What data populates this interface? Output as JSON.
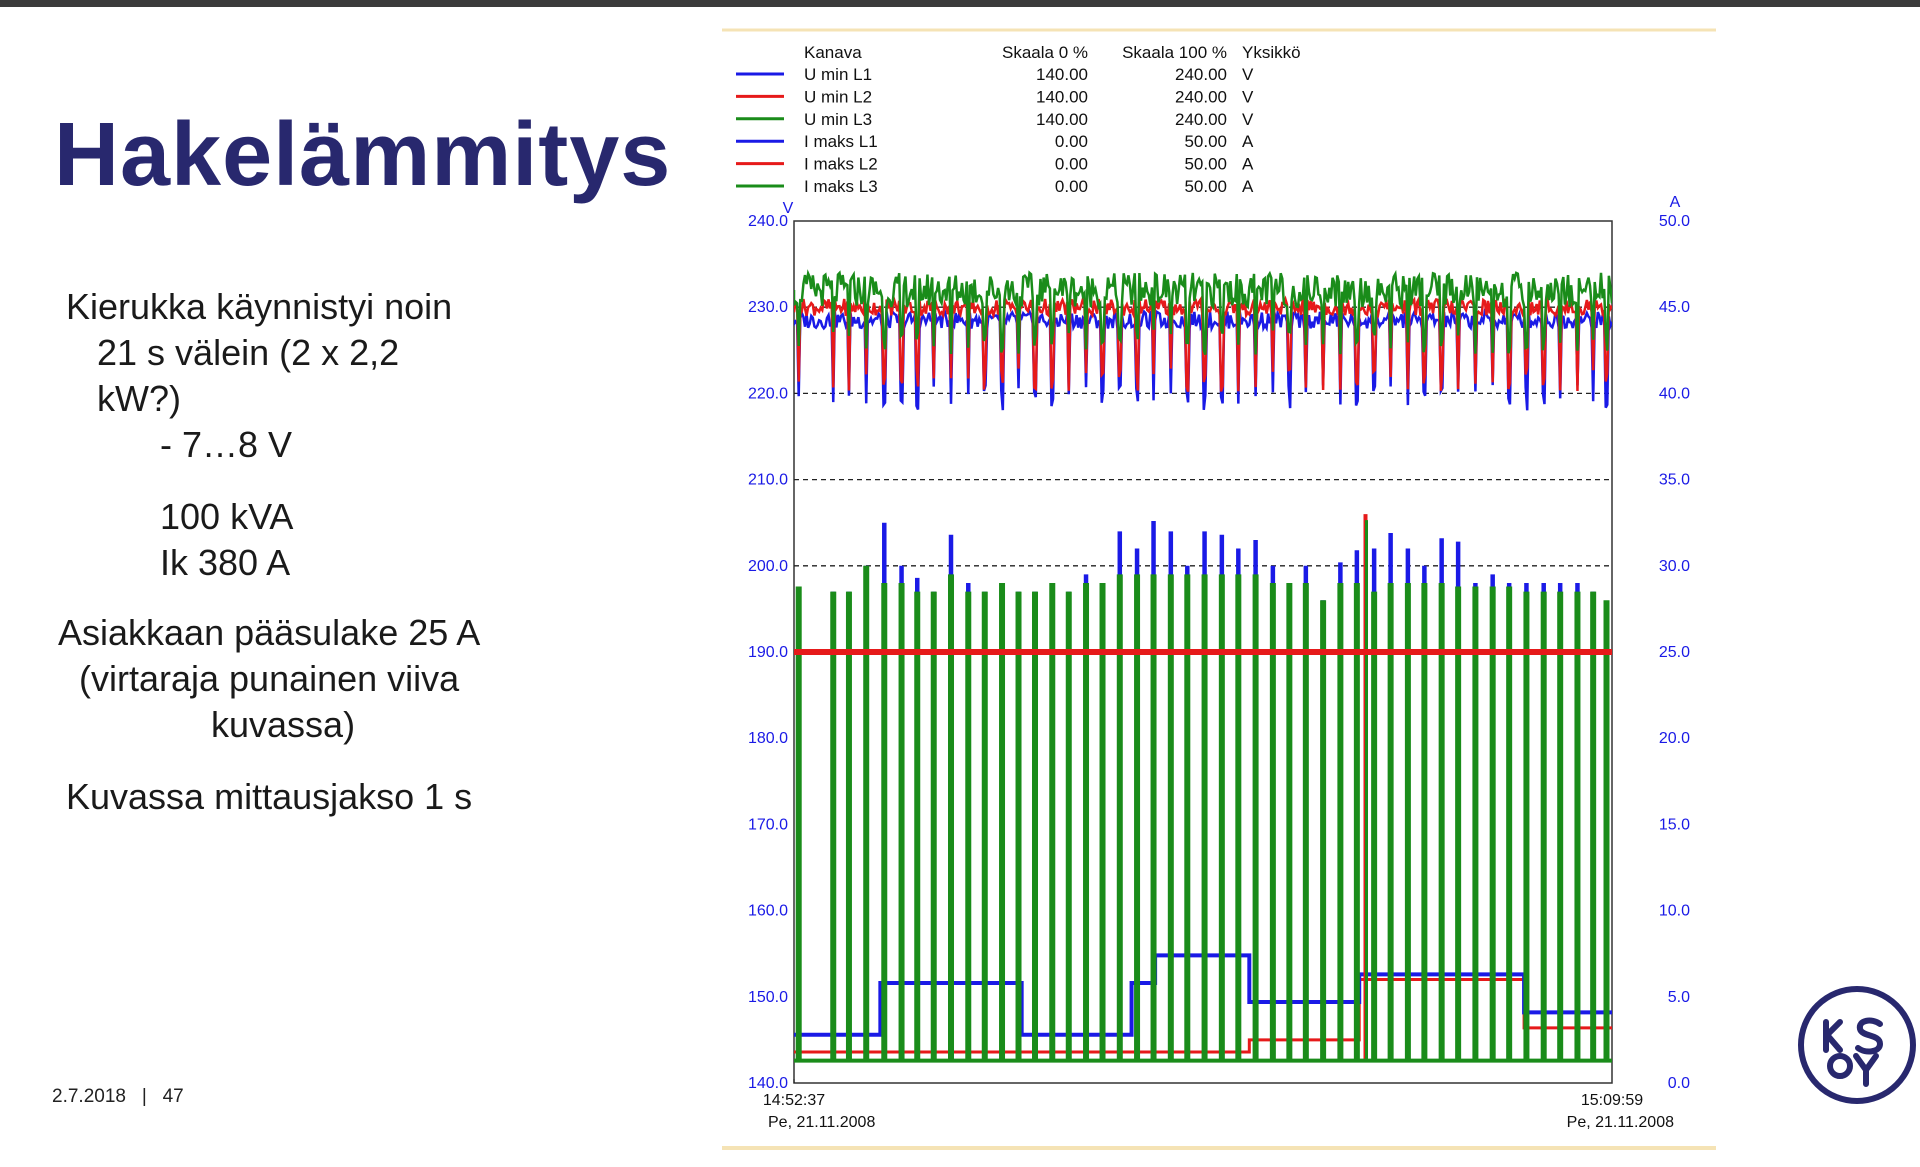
{
  "slide": {
    "title": "Hakelämmitys",
    "bullets": [
      "Kierukka käynnistyi  noin",
      "21 s välein  (2 x 2,2",
      "kW?)",
      "- 7…8 V",
      "100 kVA",
      "Ik 380 A",
      "Asiakkaan pääsulake  25 A",
      "(virtaraja  punainen viiva",
      "kuvassa)",
      "Kuvassa mittausjakso  1 s"
    ],
    "footer": {
      "date": "2.7.2018",
      "separator": "|",
      "page": "47"
    },
    "logo_text": "KSOY"
  },
  "colors": {
    "title": "#28286e",
    "l1": "#1a1ae6",
    "l2": "#e61a1a",
    "l3": "#1a8c1a",
    "axis_label": "#1a1ae6"
  },
  "chart_data": {
    "type": "line",
    "legend": {
      "headers": [
        "Kanava",
        "Skaala 0 %",
        "Skaala 100 %",
        "Yksikkö"
      ],
      "rows": [
        {
          "name": "U min L1",
          "scale0": "140.00",
          "scale100": "240.00",
          "unit": "V",
          "color": "#1a1ae6"
        },
        {
          "name": "U min L2",
          "scale0": "140.00",
          "scale100": "240.00",
          "unit": "V",
          "color": "#e61a1a"
        },
        {
          "name": "U min L3",
          "scale0": "140.00",
          "scale100": "240.00",
          "unit": "V",
          "color": "#1a8c1a"
        },
        {
          "name": "I maks L1",
          "scale0": "0.00",
          "scale100": "50.00",
          "unit": "A",
          "color": "#1a1ae6"
        },
        {
          "name": "I maks L2",
          "scale0": "0.00",
          "scale100": "50.00",
          "unit": "A",
          "color": "#e61a1a"
        },
        {
          "name": "I maks L3",
          "scale0": "0.00",
          "scale100": "50.00",
          "unit": "A",
          "color": "#1a8c1a"
        }
      ]
    },
    "y_left": {
      "unit": "V",
      "min": 140,
      "max": 240,
      "ticks": [
        "140.0",
        "150.0",
        "160.0",
        "170.0",
        "180.0",
        "190.0",
        "200.0",
        "210.0",
        "220.0",
        "230.0",
        "240.0"
      ]
    },
    "y_right": {
      "unit": "A",
      "min": 0,
      "max": 50,
      "ticks": [
        "0.0",
        "5.0",
        "10.0",
        "15.0",
        "20.0",
        "25.0",
        "30.0",
        "35.0",
        "40.0",
        "45.0",
        "50.0"
      ]
    },
    "x": {
      "start_time": "14:52:37",
      "start_date": "Pe, 21.11.2008",
      "end_time": "15:09:59",
      "end_date": "Pe, 21.11.2008",
      "start_s": 0,
      "end_s": 1042
    },
    "grid": {
      "dashed_y": [
        200,
        210,
        220,
        230
      ]
    },
    "limit_line": {
      "label": "virtaraja",
      "value_A": 25,
      "color": "#e61a1a"
    },
    "cycle_period_s": 21,
    "current_pulse_peaks_A": [
      {
        "t": 6,
        "l3": 28.8
      },
      {
        "t": 50,
        "l1": 28.5,
        "l3": 28.5
      },
      {
        "t": 70,
        "l1": 28.5,
        "l3": 28.5
      },
      {
        "t": 92,
        "l1": 30.0,
        "l3": 30.0
      },
      {
        "t": 115,
        "l1": 32.5,
        "l3": 29.0
      },
      {
        "t": 137,
        "l1": 30.0,
        "l3": 29.0
      },
      {
        "t": 157,
        "l1": 29.3,
        "l3": 28.5
      },
      {
        "t": 178,
        "l1": 28.5,
        "l3": 28.5
      },
      {
        "t": 200,
        "l1": 31.8,
        "l3": 29.5
      },
      {
        "t": 222,
        "l1": 29.0,
        "l3": 28.5
      },
      {
        "t": 243,
        "l1": 28.5,
        "l3": 28.5
      },
      {
        "t": 265,
        "l1": 29.0,
        "l3": 29.0
      },
      {
        "t": 286,
        "l1": 28.5,
        "l3": 28.5
      },
      {
        "t": 307,
        "l1": 28.5,
        "l3": 28.5
      },
      {
        "t": 329,
        "l1": 29.0,
        "l3": 29.0
      },
      {
        "t": 350,
        "l1": 28.5,
        "l3": 28.5
      },
      {
        "t": 372,
        "l1": 29.5,
        "l3": 29.0
      },
      {
        "t": 393,
        "l1": 29.0,
        "l3": 29.0
      },
      {
        "t": 415,
        "l1": 32.0,
        "l3": 29.5
      },
      {
        "t": 437,
        "l1": 31.0,
        "l3": 29.5
      },
      {
        "t": 458,
        "l1": 32.6,
        "l3": 29.5
      },
      {
        "t": 480,
        "l1": 32.0,
        "l3": 29.5
      },
      {
        "t": 501,
        "l1": 30.0,
        "l3": 29.5
      },
      {
        "t": 523,
        "l1": 32.0,
        "l3": 29.5
      },
      {
        "t": 545,
        "l1": 31.8,
        "l3": 29.5
      },
      {
        "t": 566,
        "l1": 31.0,
        "l3": 29.5
      },
      {
        "t": 588,
        "l1": 31.5,
        "l3": 29.5
      },
      {
        "t": 610,
        "l1": 30.0,
        "l3": 29.0
      },
      {
        "t": 631,
        "l1": 29.0,
        "l3": 29.0
      },
      {
        "t": 652,
        "l1": 30.0,
        "l3": 29.0
      },
      {
        "t": 674,
        "l1": 28.0,
        "l3": 28.0
      },
      {
        "t": 696,
        "l1": 30.2,
        "l3": 29.0
      },
      {
        "t": 717,
        "l1": 30.9,
        "l3": 29.0
      },
      {
        "t": 739,
        "l1": 31.0,
        "l3": 28.5
      },
      {
        "t": 760,
        "l1": 31.9,
        "l3": 29.0
      },
      {
        "t": 782,
        "l1": 31.0,
        "l3": 29.0
      },
      {
        "t": 803,
        "l1": 30.0,
        "l3": 29.0
      },
      {
        "t": 825,
        "l1": 31.6,
        "l3": 29.0
      },
      {
        "t": 846,
        "l1": 31.4,
        "l3": 28.8
      },
      {
        "t": 868,
        "l1": 29.0,
        "l3": 28.8
      },
      {
        "t": 890,
        "l1": 29.5,
        "l3": 28.8
      },
      {
        "t": 911,
        "l1": 29.0,
        "l3": 28.8
      },
      {
        "t": 933,
        "l1": 29.0,
        "l3": 28.5
      },
      {
        "t": 955,
        "l1": 29.0,
        "l3": 28.5
      },
      {
        "t": 976,
        "l1": 29.0,
        "l3": 28.5
      },
      {
        "t": 998,
        "l1": 29.0,
        "l3": 28.5
      },
      {
        "t": 1018,
        "l1": 28.5,
        "l3": 28.5
      },
      {
        "t": 1035,
        "l1": 27.5,
        "l3": 28.0
      }
    ],
    "spike_event": {
      "t": 728,
      "l2_peak_A": 33.0,
      "l3_peak_A": 33.0
    },
    "current_baseline_steps_A": [
      {
        "t0": 0,
        "t1": 110,
        "l1": 2.8,
        "l2": 1.8,
        "l3": 1.3
      },
      {
        "t0": 110,
        "t1": 290,
        "l1": 5.8,
        "l2": 1.8,
        "l3": 1.3
      },
      {
        "t0": 290,
        "t1": 430,
        "l1": 2.8,
        "l2": 1.8,
        "l3": 1.3
      },
      {
        "t0": 430,
        "t1": 460,
        "l1": 5.8,
        "l2": 1.8,
        "l3": 1.3
      },
      {
        "t0": 460,
        "t1": 580,
        "l1": 7.4,
        "l2": 1.8,
        "l3": 1.3
      },
      {
        "t0": 580,
        "t1": 720,
        "l1": 4.7,
        "l2": 2.5,
        "l3": 1.3
      },
      {
        "t0": 720,
        "t1": 930,
        "l1": 6.3,
        "l2": 6.0,
        "l3": 1.3
      },
      {
        "t0": 930,
        "t1": 1042,
        "l1": 4.1,
        "l2": 3.2,
        "l3": 1.3
      }
    ],
    "voltage_levels_V": {
      "l1": 228.5,
      "l2": 230.0,
      "l3": 232.0,
      "l1_dip": 219.5,
      "l2_dip": 221.5,
      "l3_dip": 226.0
    }
  }
}
